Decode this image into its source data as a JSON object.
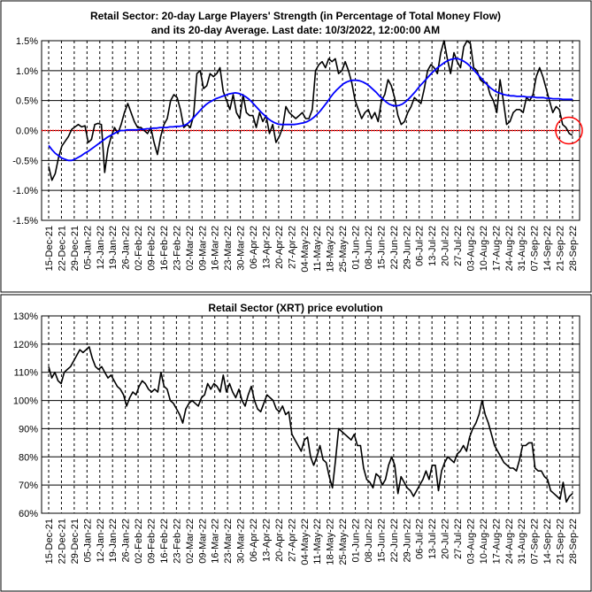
{
  "x_labels": [
    "15-Dec-21",
    "22-Dec-21",
    "29-Dec-21",
    "05-Jan-22",
    "12-Jan-22",
    "19-Jan-22",
    "26-Jan-22",
    "02-Feb-22",
    "09-Feb-22",
    "16-Feb-22",
    "23-Feb-22",
    "02-Mar-22",
    "09-Mar-22",
    "16-Mar-22",
    "23-Mar-22",
    "30-Mar-22",
    "06-Apr-22",
    "13-Apr-22",
    "20-Apr-22",
    "27-Apr-22",
    "04-May-22",
    "11-May-22",
    "18-May-22",
    "25-May-22",
    "01-Jun-22",
    "08-Jun-22",
    "15-Jun-22",
    "22-Jun-22",
    "29-Jun-22",
    "06-Jul-22",
    "13-Jul-22",
    "20-Jul-22",
    "27-Jul-22",
    "03-Aug-22",
    "10-Aug-22",
    "17-Aug-22",
    "24-Aug-22",
    "31-Aug-22",
    "07-Sep-22",
    "14-Sep-22",
    "21-Sep-22",
    "28-Sep-22"
  ],
  "chart_data": [
    {
      "type": "line",
      "title": "Retail Sector: 20-day Large Players' Strength (in Percentage of Total Money Flow)",
      "subtitle": "and its 20-day Average. Last date: 10/3/2022, 12:00:00 AM",
      "ylim": [
        -1.5,
        1.5
      ],
      "y_ticks": [
        "1.5%",
        "1.0%",
        "0.5%",
        "0.0%",
        "-0.5%",
        "-1.0%",
        "-1.5%"
      ],
      "series": [
        {
          "color": "#000000",
          "values": [
            -0.6,
            -0.83,
            -0.72,
            -0.45,
            -0.26,
            -0.18,
            -0.1,
            0.02,
            0.06,
            0.1,
            0.06,
            0.08,
            -0.2,
            -0.15,
            0.1,
            0.12,
            0.1,
            -0.7,
            -0.3,
            -0.1,
            0.05,
            -0.05,
            0.1,
            0.3,
            0.45,
            0.3,
            0.15,
            0.05,
            0.05,
            0.0,
            -0.05,
            0.05,
            -0.2,
            -0.4,
            -0.1,
            0.1,
            0.2,
            0.5,
            0.6,
            0.55,
            0.35,
            0.05,
            0.1,
            0.05,
            0.25,
            0.95,
            1.0,
            0.7,
            0.75,
            0.95,
            0.9,
            0.95,
            1.05,
            0.65,
            0.5,
            0.35,
            0.6,
            0.3,
            0.2,
            0.6,
            0.3,
            0.25,
            0.25,
            0.05,
            0.3,
            0.15,
            0.25,
            -0.05,
            0.1,
            -0.2,
            -0.1,
            0.05,
            0.4,
            0.3,
            0.25,
            0.2,
            0.25,
            0.3,
            0.2,
            0.2,
            0.35,
            1.0,
            1.1,
            1.15,
            1.05,
            1.2,
            1.15,
            1.2,
            0.95,
            1.0,
            1.15,
            1.0,
            0.8,
            0.5,
            0.35,
            0.2,
            0.3,
            0.35,
            0.2,
            0.3,
            0.15,
            0.5,
            0.6,
            0.85,
            0.75,
            0.55,
            0.25,
            0.1,
            0.15,
            0.3,
            0.4,
            0.55,
            0.5,
            0.45,
            0.7,
            1.0,
            1.1,
            1.05,
            0.95,
            1.3,
            1.5,
            1.2,
            0.95,
            1.3,
            1.15,
            1.05,
            1.4,
            1.5,
            1.45,
            1.05,
            1.0,
            0.85,
            0.8,
            0.8,
            0.6,
            0.5,
            0.3,
            0.85,
            0.5,
            0.1,
            0.15,
            0.3,
            0.35,
            0.35,
            0.3,
            0.55,
            0.5,
            0.6,
            0.9,
            1.05,
            0.9,
            0.7,
            0.5,
            0.3,
            0.4,
            0.35,
            0.1,
            0.05,
            -0.05,
            -0.08
          ]
        },
        {
          "color": "#0000ff",
          "values": [
            -0.25,
            -0.32,
            -0.38,
            -0.42,
            -0.46,
            -0.48,
            -0.5,
            -0.5,
            -0.48,
            -0.45,
            -0.42,
            -0.38,
            -0.35,
            -0.31,
            -0.27,
            -0.23,
            -0.19,
            -0.15,
            -0.11,
            -0.08,
            -0.05,
            -0.02,
            0.0,
            0.0,
            0.01,
            0.01,
            0.01,
            0.01,
            0.02,
            0.02,
            0.03,
            0.03,
            0.04,
            0.04,
            0.05,
            0.05,
            0.05,
            0.06,
            0.06,
            0.07,
            0.07,
            0.08,
            0.1,
            0.14,
            0.2,
            0.26,
            0.32,
            0.38,
            0.43,
            0.47,
            0.5,
            0.53,
            0.55,
            0.57,
            0.59,
            0.61,
            0.62,
            0.63,
            0.62,
            0.6,
            0.57,
            0.53,
            0.48,
            0.42,
            0.36,
            0.3,
            0.25,
            0.2,
            0.16,
            0.13,
            0.11,
            0.1,
            0.1,
            0.1,
            0.1,
            0.1,
            0.11,
            0.12,
            0.13,
            0.15,
            0.18,
            0.22,
            0.27,
            0.33,
            0.4,
            0.47,
            0.55,
            0.62,
            0.68,
            0.73,
            0.78,
            0.81,
            0.83,
            0.84,
            0.84,
            0.83,
            0.81,
            0.78,
            0.74,
            0.69,
            0.64,
            0.58,
            0.53,
            0.48,
            0.44,
            0.42,
            0.41,
            0.42,
            0.44,
            0.48,
            0.53,
            0.59,
            0.65,
            0.72,
            0.78,
            0.84,
            0.9,
            0.96,
            1.01,
            1.06,
            1.1,
            1.14,
            1.17,
            1.19,
            1.2,
            1.2,
            1.18,
            1.15,
            1.11,
            1.06,
            1.0,
            0.94,
            0.88,
            0.82,
            0.76,
            0.71,
            0.67,
            0.64,
            0.62,
            0.6,
            0.59,
            0.58,
            0.58,
            0.57,
            0.57,
            0.57,
            0.56,
            0.56,
            0.56,
            0.55,
            0.55,
            0.55,
            0.54,
            0.54,
            0.53,
            0.53,
            0.53,
            0.52,
            0.52,
            0.52,
            0.52
          ]
        }
      ],
      "reference_line": {
        "y": 0,
        "color": "#ff0000"
      },
      "highlight": {
        "shape": "circle",
        "color": "#ff0000"
      }
    },
    {
      "type": "line",
      "title": "Retail Sector (XRT) price evolution",
      "ylim": [
        60,
        130
      ],
      "y_ticks": [
        "130%",
        "120%",
        "110%",
        "100%",
        "90%",
        "80%",
        "70%",
        "60%"
      ],
      "series": [
        {
          "color": "#000000",
          "values": [
            112,
            108,
            110,
            107,
            106,
            110,
            111,
            112,
            114,
            116,
            118,
            117,
            118,
            119,
            115,
            112,
            111,
            112,
            110,
            108,
            109,
            107,
            105,
            104,
            102,
            98,
            101,
            103,
            102,
            105,
            107,
            106,
            104,
            103,
            104,
            103,
            110,
            105,
            104,
            100,
            99,
            97,
            95,
            92,
            97,
            99,
            100,
            99,
            98,
            101,
            102,
            106,
            104,
            106,
            105,
            103,
            109,
            103,
            106,
            103,
            101,
            104,
            100,
            98,
            102,
            105,
            100,
            97,
            96,
            99,
            102,
            101,
            100,
            97,
            96,
            98,
            95,
            96,
            88,
            86,
            84,
            82,
            86,
            87,
            80,
            77,
            80,
            84,
            79,
            78,
            73,
            69,
            79,
            90,
            89,
            88,
            87,
            86,
            88,
            84,
            84,
            76,
            72,
            71,
            69,
            74,
            73,
            70,
            72,
            77,
            80,
            77,
            67,
            73,
            71,
            69,
            68,
            66,
            68,
            70,
            72,
            75,
            72,
            77,
            77,
            68,
            75,
            78,
            80,
            79,
            78,
            81,
            82,
            84,
            82,
            87,
            90,
            92,
            95,
            100,
            95,
            92,
            88,
            84,
            82,
            80,
            78,
            77,
            76,
            76,
            75,
            79,
            84,
            84,
            85,
            85,
            76,
            75,
            75,
            73,
            72,
            68,
            67,
            66,
            65,
            71,
            64,
            66,
            67
          ]
        }
      ]
    }
  ]
}
